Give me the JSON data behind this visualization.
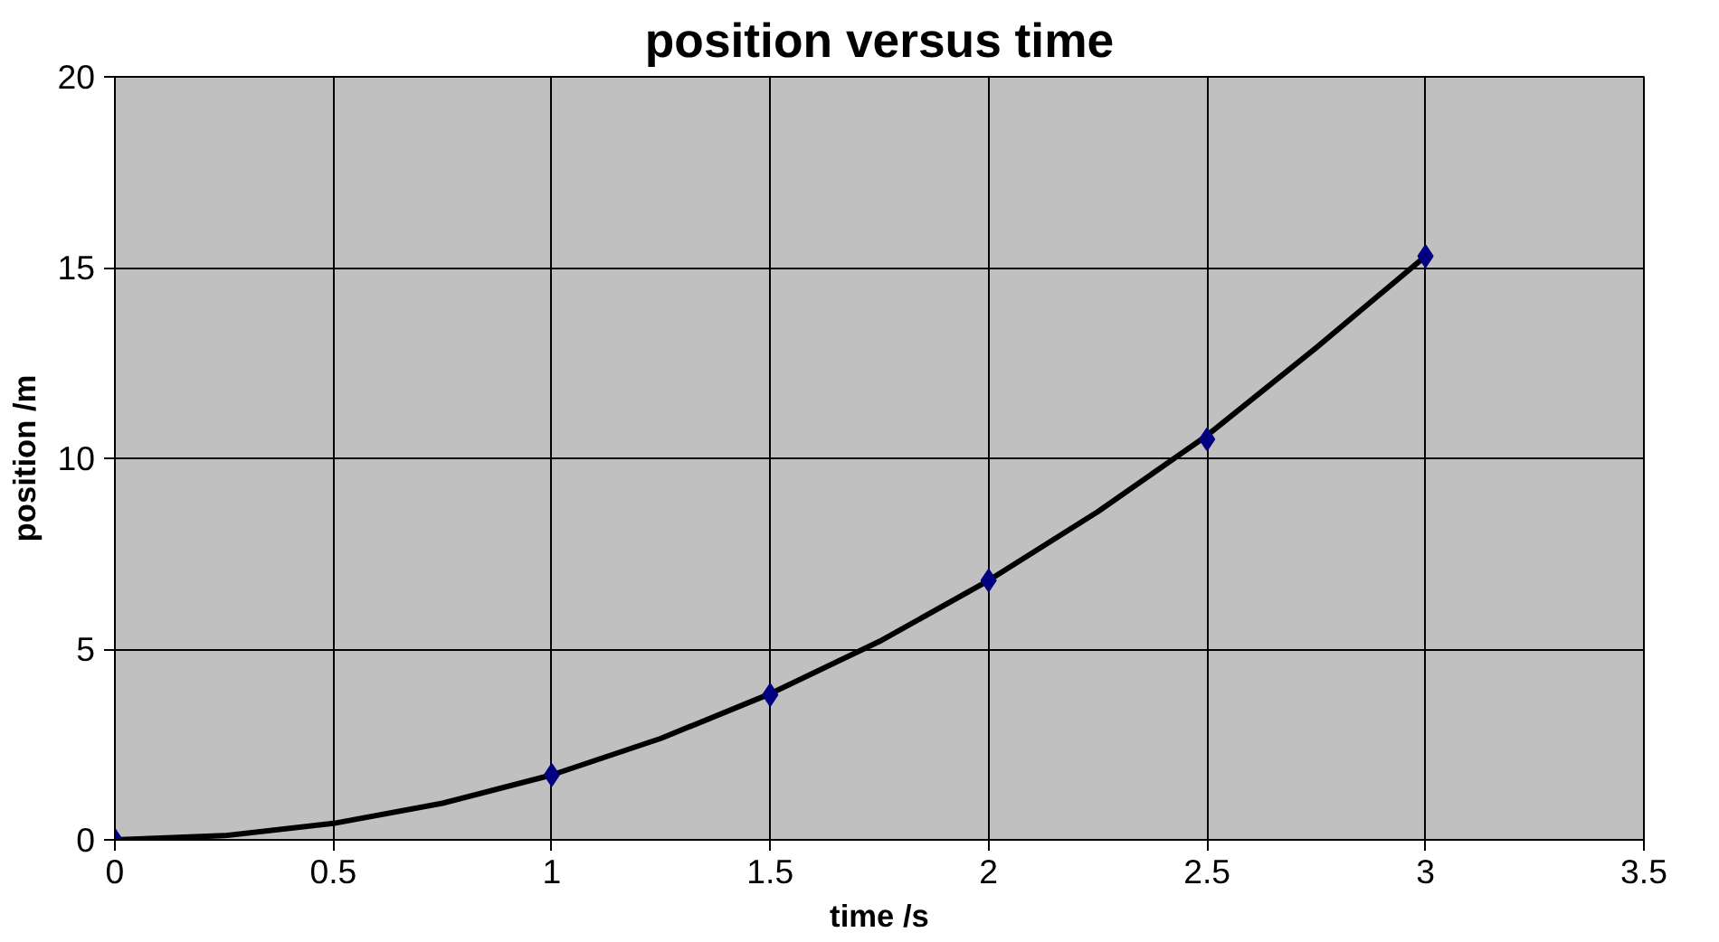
{
  "chart_data": {
    "type": "scatter",
    "title": "position versus time",
    "xlabel": "time /s",
    "ylabel": "position /m",
    "xlim": [
      0,
      3.5
    ],
    "xticks": [
      0,
      0.5,
      1,
      1.5,
      2,
      2.5,
      3,
      3.5
    ],
    "ylim": [
      0,
      20
    ],
    "yticks": [
      0,
      5,
      10,
      15,
      20
    ],
    "grid": true,
    "series": [
      {
        "type": "line",
        "color": "#000000",
        "line_style": "solid",
        "marker": "none",
        "x": [
          0,
          0.25,
          0.5,
          0.75,
          1,
          1.25,
          1.5,
          1.75,
          2,
          2.25,
          2.5,
          2.75,
          3
        ],
        "values": [
          0,
          0.11,
          0.43,
          0.96,
          1.7,
          2.66,
          3.83,
          5.2,
          6.8,
          8.6,
          10.6,
          12.9,
          15.3
        ]
      },
      {
        "color": "#000080",
        "marker": "diamond",
        "x": [
          0,
          1,
          1.5,
          2,
          2.5,
          3
        ],
        "values": [
          0,
          1.7,
          3.8,
          6.8,
          10.5,
          15.3
        ]
      }
    ]
  }
}
